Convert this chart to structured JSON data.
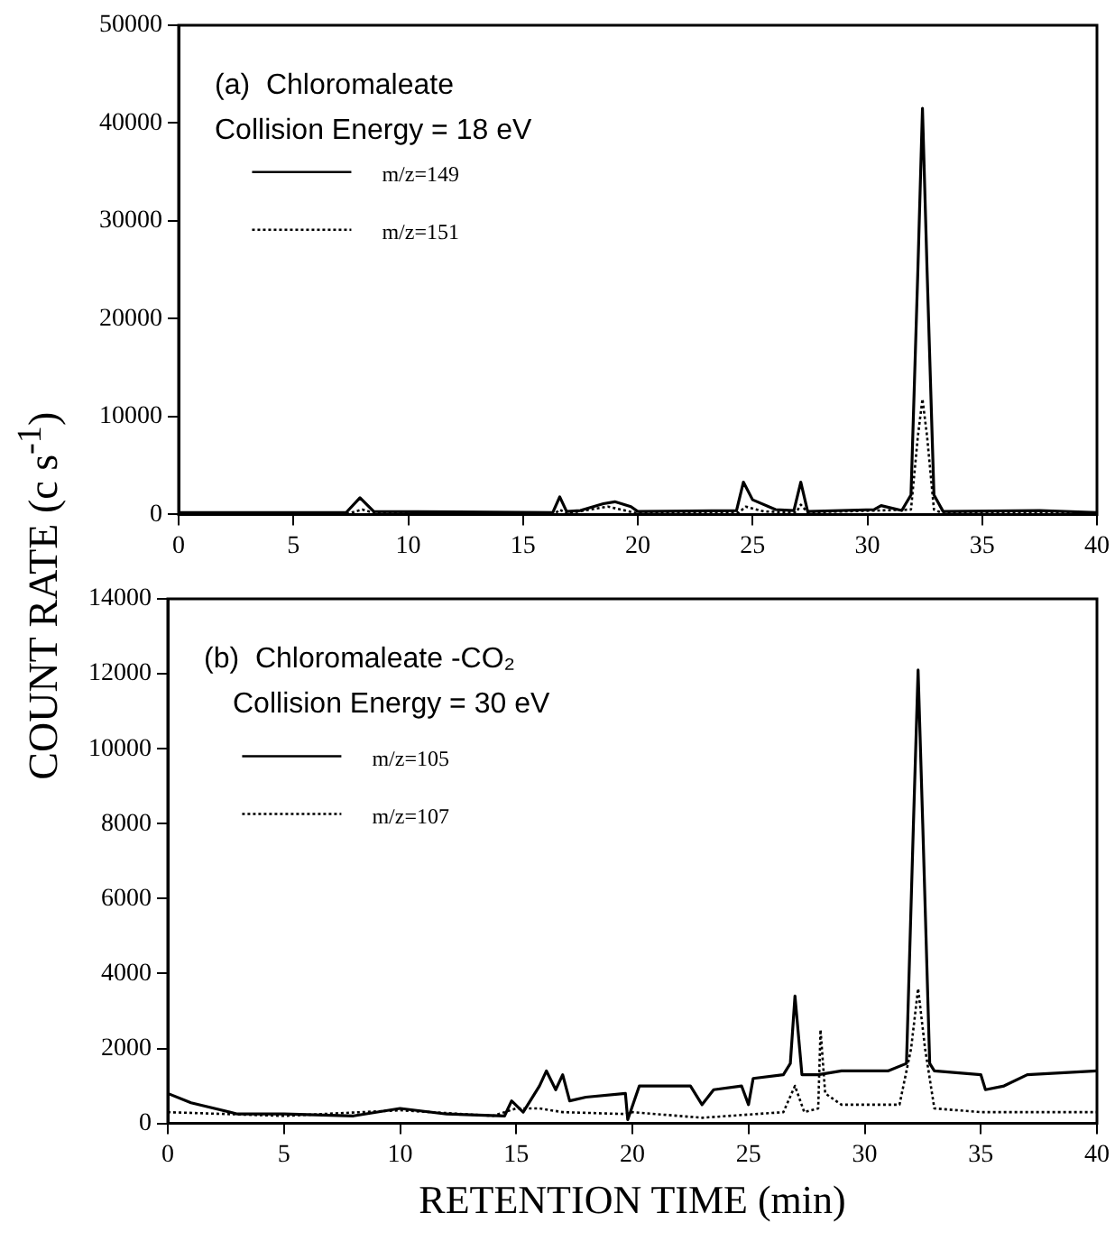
{
  "chart_data": [
    {
      "type": "line",
      "title": "(a)  Chloromaleate",
      "subtitle": "Collision Energy = 18 eV",
      "ylabel": "COUNT RATE (c s$^{-1}$)",
      "xlim": [
        0,
        40
      ],
      "xticks": [
        0,
        5,
        10,
        15,
        20,
        25,
        30,
        35,
        40
      ],
      "ylim": [
        0,
        50000
      ],
      "yticks": [
        0,
        10000,
        20000,
        30000,
        40000,
        50000
      ],
      "grid": false,
      "legend": "top left",
      "marker": "none",
      "series": [
        {
          "name": "m/z=149",
          "color": "#000000",
          "line_style": "solid",
          "x": [
            0,
            7.3,
            7.9,
            8.5,
            16.3,
            16.6,
            16.9,
            17.5,
            18.5,
            19,
            19.7,
            20,
            24.3,
            24.6,
            25,
            26,
            26.8,
            27.1,
            27.4,
            30.3,
            30.6,
            31.5,
            31.9,
            32.2,
            32.4,
            32.6,
            32.9,
            33.3,
            37.5,
            40
          ],
          "values": [
            200,
            200,
            1700,
            300,
            200,
            1800,
            300,
            400,
            1100,
            1300,
            800,
            300,
            400,
            3300,
            1500,
            500,
            400,
            3300,
            300,
            500,
            900,
            400,
            2000,
            25000,
            41500,
            25000,
            2000,
            300,
            400,
            200
          ]
        },
        {
          "name": "m/z=151",
          "color": "#000000",
          "line_style": "dotted",
          "x": [
            0,
            7.4,
            8,
            8.6,
            16.4,
            16.6,
            16.9,
            18.7,
            20,
            24.4,
            24.7,
            25.5,
            26.9,
            27.1,
            27.4,
            31.9,
            32.2,
            32.4,
            32.6,
            32.9,
            33.3,
            40
          ],
          "values": [
            100,
            100,
            500,
            100,
            100,
            500,
            100,
            800,
            100,
            200,
            800,
            300,
            200,
            1000,
            200,
            500,
            8000,
            11800,
            8000,
            500,
            100,
            100
          ]
        }
      ]
    },
    {
      "type": "line",
      "title": "(b)  Chloromaleate -CO₂",
      "subtitle": "Collision Energy = 30 eV",
      "xlabel": "RETENTION TIME (min)",
      "xlim": [
        0,
        40
      ],
      "xticks": [
        0,
        5,
        10,
        15,
        20,
        25,
        30,
        35,
        40
      ],
      "ylim": [
        0,
        14000
      ],
      "yticks": [
        0,
        2000,
        4000,
        6000,
        8000,
        10000,
        12000,
        14000
      ],
      "grid": false,
      "legend": "top left",
      "marker": "none",
      "series": [
        {
          "name": "m/z=105",
          "color": "#000000",
          "line_style": "solid",
          "x": [
            0,
            1,
            3,
            5,
            8,
            10,
            12,
            14.5,
            14.8,
            15.3,
            16,
            16.3,
            16.7,
            17,
            17.3,
            18,
            19.7,
            19.8,
            20.3,
            22.5,
            23,
            23.5,
            24.7,
            25,
            25.2,
            26.5,
            26.8,
            27,
            27.3,
            28,
            29,
            31,
            31.8,
            32.1,
            32.3,
            32.5,
            32.8,
            33,
            35,
            35.2,
            36,
            37,
            40
          ],
          "values": [
            800,
            550,
            250,
            250,
            200,
            400,
            250,
            200,
            600,
            300,
            1000,
            1400,
            900,
            1300,
            600,
            700,
            800,
            100,
            1000,
            1000,
            500,
            900,
            1000,
            500,
            1200,
            1300,
            1600,
            3400,
            1300,
            1300,
            1400,
            1400,
            1600,
            8000,
            12100,
            8000,
            1600,
            1400,
            1300,
            900,
            1000,
            1300,
            1400
          ]
        },
        {
          "name": "m/z=107",
          "color": "#000000",
          "line_style": "dotted",
          "x": [
            0,
            5,
            10,
            14,
            15,
            16,
            17,
            19.7,
            20,
            23,
            26.5,
            27,
            27.4,
            28,
            28.1,
            28.3,
            29,
            31.5,
            32,
            32.3,
            32.6,
            33,
            35,
            40
          ],
          "values": [
            300,
            200,
            350,
            200,
            400,
            400,
            300,
            250,
            300,
            150,
            300,
            1000,
            300,
            400,
            2500,
            800,
            500,
            500,
            2000,
            3600,
            2000,
            400,
            300,
            300
          ]
        }
      ]
    }
  ]
}
